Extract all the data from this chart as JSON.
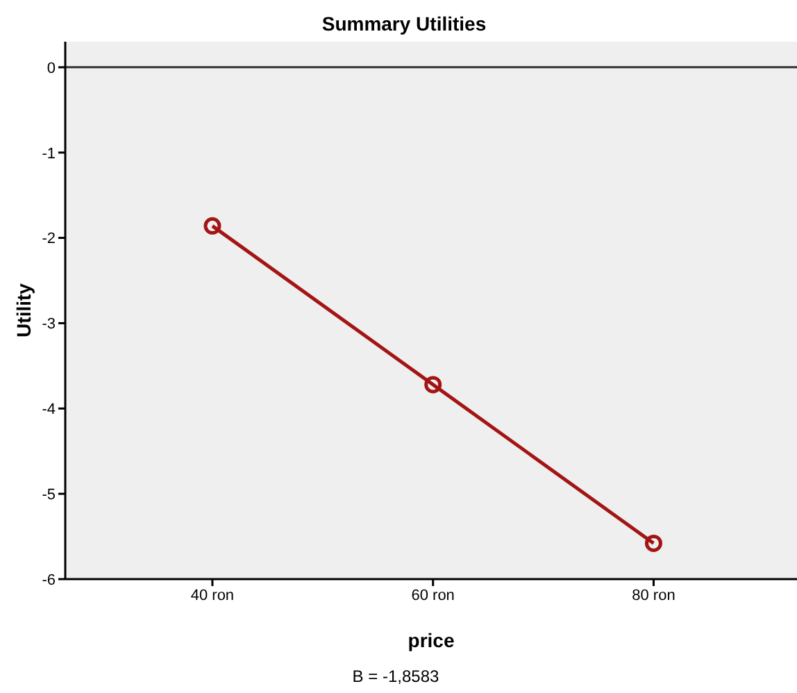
{
  "chart_data": {
    "type": "line",
    "title": "Summary Utilities",
    "xlabel": "price",
    "ylabel": "Utility",
    "categories": [
      "40 ron",
      "60 ron",
      "80 ron"
    ],
    "series": [
      {
        "color": "#a31515",
        "values": [
          -1.86,
          -3.72,
          -5.58
        ]
      }
    ],
    "ylim": [
      -6,
      0.3
    ],
    "yticks": [
      -6,
      -5,
      -4,
      -3,
      -2,
      -1,
      0
    ],
    "ref_lines": [
      {
        "axis": "y",
        "value": 0,
        "color": "#333333"
      }
    ],
    "annotations": [
      "B = -1,8583"
    ],
    "marker": "circle",
    "line_style": "solid",
    "grid": false,
    "legend": false
  }
}
